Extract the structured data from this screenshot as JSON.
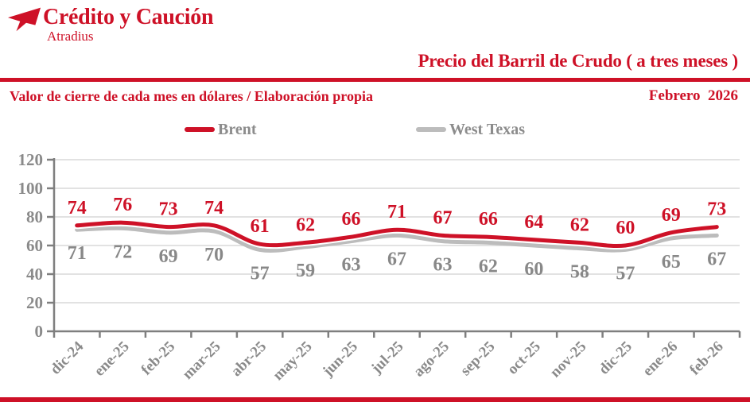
{
  "header": {
    "brand_name": "Crédito y Caución",
    "brand_subtitle": "Atradius",
    "subtitle": "Valor de cierre de cada mes en dólares / Elaboración propia",
    "date_label": "Febrero  2026"
  },
  "colors": {
    "accent_red": "#ce1127",
    "line_gray": "#bcbcbc",
    "legend_text_gray": "#8c8c8c",
    "data_label_gray": "#888888",
    "axis_gray": "#7f7f7f",
    "tick_label_gray": "#8a8a8a",
    "grid_gray": "#d8d8d8",
    "background": "#ffffff"
  },
  "chart_data": {
    "type": "line",
    "title": "Precio del Barril de Crudo ( a tres meses )",
    "subtitle": "Valor de cierre de cada mes en dólares / Elaboración propia",
    "xlabel": "",
    "ylabel": "",
    "ylim": [
      0,
      120
    ],
    "yticks": [
      0,
      20,
      40,
      60,
      80,
      100,
      120
    ],
    "grid": true,
    "legend_position": "top",
    "data_labels": true,
    "categories": [
      "dic-24",
      "ene-25",
      "feb-25",
      "mar-25",
      "abr-25",
      "may-25",
      "jun-25",
      "jul-25",
      "ago-25",
      "sep-25",
      "oct-25",
      "nov-25",
      "dic-25",
      "ene-26",
      "feb-26"
    ],
    "series": [
      {
        "name": "Brent",
        "color": "#ce1127",
        "values": [
          74,
          76,
          73,
          74,
          61,
          62,
          66,
          71,
          67,
          66,
          64,
          62,
          60,
          69,
          73
        ]
      },
      {
        "name": "West Texas",
        "color": "#bcbcbc",
        "values": [
          71,
          72,
          69,
          70,
          57,
          59,
          63,
          67,
          63,
          62,
          60,
          58,
          57,
          65,
          67
        ]
      }
    ]
  }
}
